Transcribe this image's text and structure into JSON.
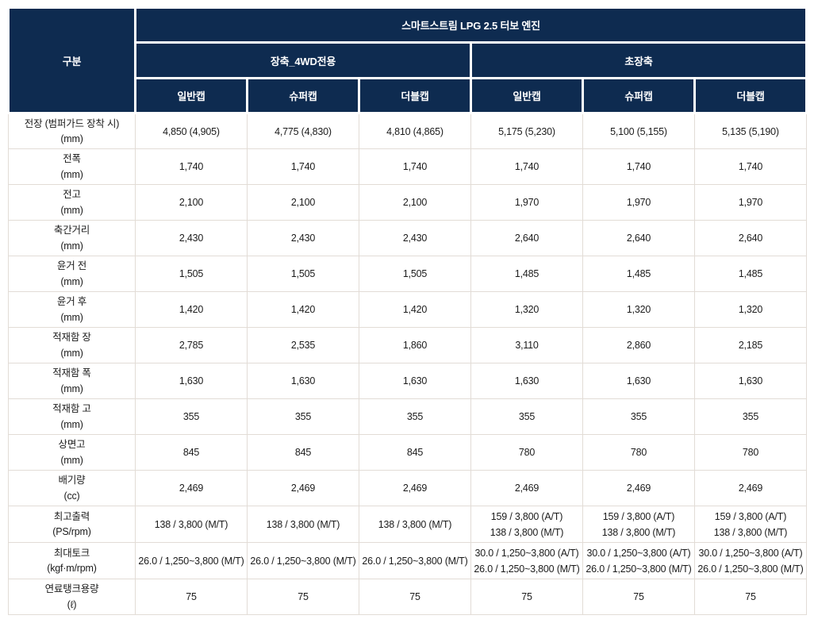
{
  "colors": {
    "header_bg": "#0e2b50",
    "header_text": "#ffffff",
    "body_border": "#e2dcd6",
    "body_text": "#1c1c1c",
    "page_bg": "#ffffff"
  },
  "table": {
    "corner_label": "구분",
    "engine_header": "스마트스트림 LPG 2.5 터보 엔진",
    "groups": [
      {
        "label": "장축_4WD전용",
        "cabs": [
          "일반캡",
          "슈퍼캡",
          "더블캡"
        ]
      },
      {
        "label": "초장축",
        "cabs": [
          "일반캡",
          "슈퍼캡",
          "더블캡"
        ]
      }
    ],
    "rows": [
      {
        "label": "전장 (범퍼가드 장착 시)",
        "unit": "(mm)",
        "values": [
          "4,850 (4,905)",
          "4,775 (4,830)",
          "4,810 (4,865)",
          "5,175 (5,230)",
          "5,100 (5,155)",
          "5,135 (5,190)"
        ]
      },
      {
        "label": "전폭",
        "unit": "(mm)",
        "values": [
          "1,740",
          "1,740",
          "1,740",
          "1,740",
          "1,740",
          "1,740"
        ]
      },
      {
        "label": "전고",
        "unit": "(mm)",
        "values": [
          "2,100",
          "2,100",
          "2,100",
          "1,970",
          "1,970",
          "1,970"
        ]
      },
      {
        "label": "축간거리",
        "unit": "(mm)",
        "values": [
          "2,430",
          "2,430",
          "2,430",
          "2,640",
          "2,640",
          "2,640"
        ]
      },
      {
        "label": "윤거 전",
        "unit": "(mm)",
        "values": [
          "1,505",
          "1,505",
          "1,505",
          "1,485",
          "1,485",
          "1,485"
        ]
      },
      {
        "label": "윤거 후",
        "unit": "(mm)",
        "values": [
          "1,420",
          "1,420",
          "1,420",
          "1,320",
          "1,320",
          "1,320"
        ]
      },
      {
        "label": "적재함 장",
        "unit": "(mm)",
        "values": [
          "2,785",
          "2,535",
          "1,860",
          "3,110",
          "2,860",
          "2,185"
        ]
      },
      {
        "label": "적재함 폭",
        "unit": "(mm)",
        "values": [
          "1,630",
          "1,630",
          "1,630",
          "1,630",
          "1,630",
          "1,630"
        ]
      },
      {
        "label": "적재함 고",
        "unit": "(mm)",
        "values": [
          "355",
          "355",
          "355",
          "355",
          "355",
          "355"
        ]
      },
      {
        "label": "상면고",
        "unit": "(mm)",
        "values": [
          "845",
          "845",
          "845",
          "780",
          "780",
          "780"
        ]
      },
      {
        "label": "배기량",
        "unit": "(cc)",
        "values": [
          "2,469",
          "2,469",
          "2,469",
          "2,469",
          "2,469",
          "2,469"
        ]
      },
      {
        "label": "최고출력",
        "unit": "(PS/rpm)",
        "values": [
          "138 / 3,800 (M/T)",
          "138 / 3,800 (M/T)",
          "138 / 3,800 (M/T)",
          "159 / 3,800 (A/T)\n138 / 3,800 (M/T)",
          "159 / 3,800 (A/T)\n138 / 3,800 (M/T)",
          "159 / 3,800 (A/T)\n138 / 3,800 (M/T)"
        ]
      },
      {
        "label": "최대토크",
        "unit": "(kgf·m/rpm)",
        "values": [
          "26.0 / 1,250~3,800 (M/T)",
          "26.0 / 1,250~3,800 (M/T)",
          "26.0 / 1,250~3,800 (M/T)",
          "30.0 / 1,250~3,800 (A/T)\n26.0 / 1,250~3,800 (M/T)",
          "30.0 / 1,250~3,800 (A/T)\n26.0 / 1,250~3,800 (M/T)",
          "30.0 / 1,250~3,800 (A/T)\n26.0 / 1,250~3,800 (M/T)"
        ]
      },
      {
        "label": "연료탱크용량",
        "unit": "(ℓ)",
        "values": [
          "75",
          "75",
          "75",
          "75",
          "75",
          "75"
        ]
      }
    ]
  }
}
